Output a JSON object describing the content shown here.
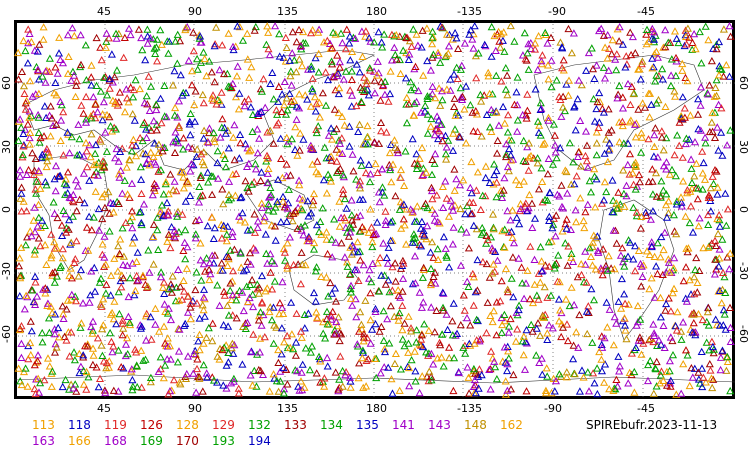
{
  "source_label": "SPIREbufr.2023-11-13",
  "axes": {
    "lon_top": [
      "45",
      "90",
      "135",
      "180",
      "-135",
      "-90",
      "-45"
    ],
    "lon_bottom": [
      "45",
      "90",
      "135",
      "180",
      "-135",
      "-90",
      "-45"
    ],
    "lat_left": [
      "60",
      "30",
      "0",
      "-30",
      "-60"
    ],
    "lat_right": [
      "60",
      "30",
      "0",
      "-30",
      "-60"
    ]
  },
  "legend": [
    {
      "id": "113",
      "color": "#f0a000"
    },
    {
      "id": "118",
      "color": "#0000c0"
    },
    {
      "id": "119",
      "color": "#e02828"
    },
    {
      "id": "126",
      "color": "#c00000"
    },
    {
      "id": "128",
      "color": "#f0a000"
    },
    {
      "id": "129",
      "color": "#e02828"
    },
    {
      "id": "132",
      "color": "#00a000"
    },
    {
      "id": "133",
      "color": "#a00000"
    },
    {
      "id": "134",
      "color": "#00a000"
    },
    {
      "id": "135",
      "color": "#0000c0"
    },
    {
      "id": "141",
      "color": "#a000c8"
    },
    {
      "id": "143",
      "color": "#a000c8"
    },
    {
      "id": "148",
      "color": "#c09000"
    },
    {
      "id": "162",
      "color": "#f0a000"
    },
    {
      "id": "163",
      "color": "#a000c8"
    },
    {
      "id": "166",
      "color": "#f0a000"
    },
    {
      "id": "168",
      "color": "#a000c8"
    },
    {
      "id": "169",
      "color": "#00a000"
    },
    {
      "id": "170",
      "color": "#a00000"
    },
    {
      "id": "193",
      "color": "#00a000"
    },
    {
      "id": "194",
      "color": "#0000c0"
    }
  ],
  "map": {
    "marker_shape": "triangle",
    "gridlines": "dotted",
    "lon_range": [
      0,
      360
    ],
    "lat_range": [
      -90,
      90
    ]
  }
}
